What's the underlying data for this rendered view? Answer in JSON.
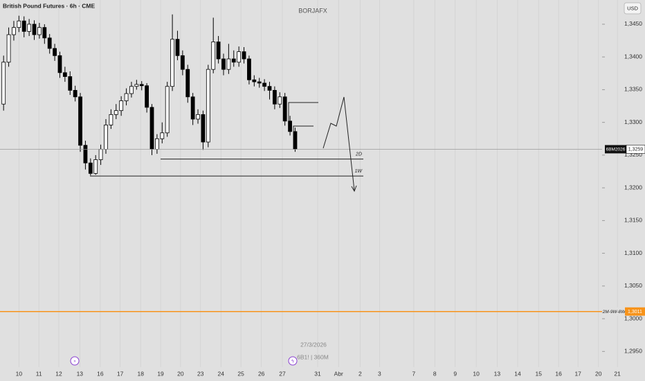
{
  "chart_data": {
    "type": "candlestick",
    "title": "British Pound Futures · 6h · CME",
    "watermark": "BORJAFX",
    "currency": "USD",
    "footer_date": "27/3/2026",
    "footer_symbol": "6B1! | 360M",
    "colors": {
      "up": "#ffffff",
      "down": "#000000",
      "border": "#000000"
    },
    "xlim": [
      -0.7,
      125.4
    ],
    "ylim": [
      1.2926,
      1.3487
    ],
    "yticks": [
      {
        "value": 1.345,
        "label": "1,3450"
      },
      {
        "value": 1.34,
        "label": "1,3400"
      },
      {
        "value": 1.335,
        "label": "1,3350"
      },
      {
        "value": 1.33,
        "label": "1,3300"
      },
      {
        "value": 1.325,
        "label": "1,3250"
      },
      {
        "value": 1.32,
        "label": "1,3200"
      },
      {
        "value": 1.315,
        "label": "1,3150"
      },
      {
        "value": 1.31,
        "label": "1,3100"
      },
      {
        "value": 1.305,
        "label": "1,3050"
      },
      {
        "value": 1.3,
        "label": "1,3000"
      },
      {
        "value": 1.295,
        "label": "1,2950"
      }
    ],
    "xticks": [
      {
        "value": 3,
        "label": "10"
      },
      {
        "value": 6.9,
        "label": "11"
      },
      {
        "value": 10.8,
        "label": "12"
      },
      {
        "value": 14.9,
        "label": "13"
      },
      {
        "value": 18.9,
        "label": "16"
      },
      {
        "value": 22.8,
        "label": "17"
      },
      {
        "value": 26.8,
        "label": "18"
      },
      {
        "value": 30.7,
        "label": "19"
      },
      {
        "value": 34.6,
        "label": "20"
      },
      {
        "value": 38.5,
        "label": "23"
      },
      {
        "value": 42.5,
        "label": "24"
      },
      {
        "value": 46.4,
        "label": "25"
      },
      {
        "value": 50.4,
        "label": "26"
      },
      {
        "value": 54.5,
        "label": "27"
      },
      {
        "value": 61.4,
        "label": "31"
      },
      {
        "value": 65.5,
        "label": "Abr"
      },
      {
        "value": 69.7,
        "label": "2"
      },
      {
        "value": 73.5,
        "label": "3"
      },
      {
        "value": 80.2,
        "label": "7"
      },
      {
        "value": 84.3,
        "label": "8"
      },
      {
        "value": 88.3,
        "label": "9"
      },
      {
        "value": 92.4,
        "label": "10"
      },
      {
        "value": 96.5,
        "label": "13"
      },
      {
        "value": 100.5,
        "label": "14"
      },
      {
        "value": 104.6,
        "label": "15"
      },
      {
        "value": 108.5,
        "label": "16"
      },
      {
        "value": 112.3,
        "label": "17"
      },
      {
        "value": 116.3,
        "label": "20"
      },
      {
        "value": 120,
        "label": "21"
      }
    ],
    "open": [
      1.3328,
      1.3392,
      1.3434,
      1.3445,
      1.3455,
      1.3439,
      1.345,
      1.3434,
      1.3445,
      1.3429,
      1.3413,
      1.3402,
      1.3376,
      1.337,
      1.3349,
      1.3339,
      1.3265,
      1.3238,
      1.3222,
      1.3243,
      1.3259,
      1.3296,
      1.3312,
      1.3318,
      1.3333,
      1.3344,
      1.3355,
      1.3358,
      1.3356,
      1.3323,
      1.3259,
      1.3275,
      1.3284,
      1.3355,
      1.3427,
      1.3402,
      1.3381,
      1.3339,
      1.3305,
      1.3312,
      1.327,
      1.3381,
      1.3423,
      1.3397,
      1.3381,
      1.3397,
      1.3392,
      1.3408,
      1.3397,
      1.3365,
      1.3362,
      1.336,
      1.3355,
      1.3349,
      1.3328,
      1.3339,
      1.3302,
      1.3286
    ],
    "close": [
      1.3392,
      1.3434,
      1.3445,
      1.3455,
      1.3439,
      1.345,
      1.3434,
      1.3445,
      1.3429,
      1.3413,
      1.3402,
      1.3376,
      1.337,
      1.3349,
      1.3339,
      1.3265,
      1.3238,
      1.3222,
      1.3243,
      1.3259,
      1.3296,
      1.3312,
      1.3318,
      1.3333,
      1.3344,
      1.3355,
      1.3358,
      1.3356,
      1.3323,
      1.3259,
      1.3275,
      1.3284,
      1.3355,
      1.3427,
      1.3402,
      1.3381,
      1.3339,
      1.3305,
      1.3312,
      1.327,
      1.3381,
      1.3423,
      1.3397,
      1.3381,
      1.3397,
      1.3392,
      1.3408,
      1.3397,
      1.3365,
      1.3362,
      1.336,
      1.3355,
      1.3349,
      1.3328,
      1.3339,
      1.3302,
      1.3286,
      1.3259
    ],
    "high": [
      1.3402,
      1.3445,
      1.3455,
      1.3463,
      1.3462,
      1.3458,
      1.3456,
      1.3452,
      1.345,
      1.3435,
      1.342,
      1.3408,
      1.3385,
      1.3378,
      1.3356,
      1.3345,
      1.3272,
      1.3245,
      1.325,
      1.3266,
      1.3305,
      1.332,
      1.3328,
      1.334,
      1.3352,
      1.3362,
      1.3365,
      1.3363,
      1.336,
      1.3328,
      1.3282,
      1.33,
      1.3362,
      1.3465,
      1.344,
      1.341,
      1.3388,
      1.3345,
      1.332,
      1.3318,
      1.3388,
      1.346,
      1.3432,
      1.3405,
      1.342,
      1.341,
      1.3416,
      1.3415,
      1.3402,
      1.3372,
      1.3368,
      1.3366,
      1.3362,
      1.3355,
      1.3346,
      1.3345,
      1.331,
      1.3292
    ],
    "low": [
      1.3318,
      1.3385,
      1.3425,
      1.3438,
      1.343,
      1.3432,
      1.3426,
      1.3428,
      1.342,
      1.3405,
      1.3394,
      1.3368,
      1.3362,
      1.3342,
      1.3332,
      1.3255,
      1.3228,
      1.3219,
      1.322,
      1.3235,
      1.3252,
      1.329,
      1.3305,
      1.331,
      1.3326,
      1.3338,
      1.335,
      1.3349,
      1.3315,
      1.325,
      1.3252,
      1.3268,
      1.3278,
      1.3348,
      1.3395,
      1.3372,
      1.333,
      1.3296,
      1.3298,
      1.3258,
      1.3262,
      1.3375,
      1.339,
      1.3372,
      1.3374,
      1.3385,
      1.3385,
      1.339,
      1.3358,
      1.3355,
      1.3353,
      1.3348,
      1.3335,
      1.332,
      1.3322,
      1.3295,
      1.328,
      1.3255
    ],
    "levels": [
      {
        "name": "2D",
        "value": 1.3244
      },
      {
        "name": "1W",
        "value": 1.3218
      }
    ],
    "price_tags": [
      {
        "name": "6BM2026",
        "value": 1.3259,
        "label": "1,3259",
        "color": "#999999"
      },
      {
        "name": "2M-9W-8W",
        "value": 1.3011,
        "label": "1,3011",
        "color": "#f7931a"
      }
    ]
  }
}
